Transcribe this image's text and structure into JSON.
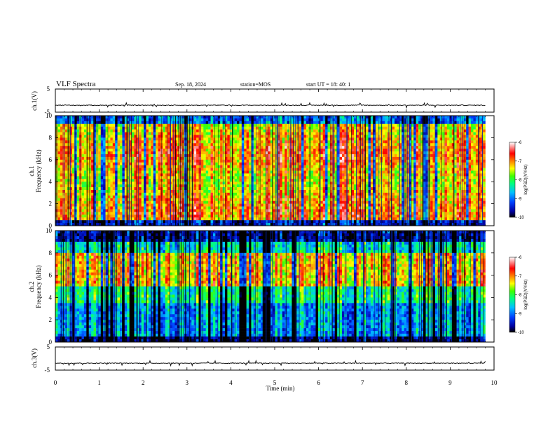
{
  "header": {
    "title": "VLF Spectra",
    "date": "Sep. 18, 2024",
    "station": "station=MOS",
    "start": "start  UT  =   18: 40: 1"
  },
  "chart_data": [
    {
      "type": "line",
      "panel": "ch1-voltage",
      "ylabel": "ch.1(V)",
      "ylim": [
        -5,
        5
      ],
      "yticks": [
        5,
        -5
      ],
      "xlim": [
        0,
        10
      ],
      "note_values": "trace near -2 V with small spikes"
    },
    {
      "type": "heatmap",
      "panel": "ch1-spectrogram",
      "ylabel_line1": "ch.1",
      "ylabel_line2": "Frequency (kHz)",
      "ylim": [
        0,
        10
      ],
      "yticks": [
        "0",
        "2",
        "4",
        "6",
        "8",
        "10"
      ],
      "xlim": [
        0,
        9.8
      ],
      "colorbar": {
        "label": "log(PSD)(V²/Hz)",
        "range": [
          -10,
          -6
        ],
        "ticks": [
          "-6",
          "-7",
          "-8",
          "-9",
          "-10"
        ]
      }
    },
    {
      "type": "heatmap",
      "panel": "ch2-spectrogram",
      "ylabel_line1": "ch.2",
      "ylabel_line2": "Frequency (kHz)",
      "ylim": [
        0,
        10
      ],
      "yticks": [
        "0",
        "2",
        "4",
        "6",
        "8",
        "10"
      ],
      "xlim": [
        0,
        9.8
      ],
      "colorbar": {
        "label": "log(PSD)(V²/Hz)",
        "range": [
          -10,
          -6
        ],
        "ticks": [
          "-6",
          "-7",
          "-8",
          "-9",
          "-10"
        ]
      }
    },
    {
      "type": "line",
      "panel": "ch3-voltage",
      "ylabel": "ch.3(V)",
      "ylim": [
        -5,
        5
      ],
      "yticks": [
        5,
        -5
      ],
      "xlim": [
        0,
        10
      ],
      "note_values": "trace near -2 V with small spikes"
    }
  ],
  "xaxis": {
    "label": "Time  (min)",
    "ticks": [
      "0",
      "1",
      "2",
      "3",
      "4",
      "5",
      "6",
      "7",
      "8",
      "9",
      "10"
    ],
    "range": [
      0,
      10
    ]
  }
}
